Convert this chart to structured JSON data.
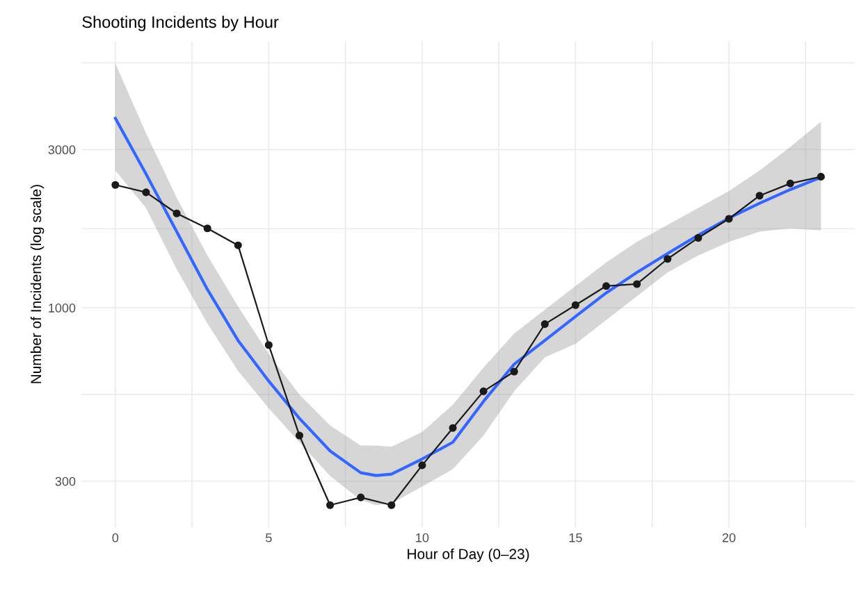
{
  "chart_data": {
    "type": "line",
    "title": "Shooting Incidents by Hour",
    "xlabel": "Hour of Day (0–23)",
    "ylabel": "Number of Incidents (log scale)",
    "log": "y",
    "grid": true,
    "legend": false,
    "xlim": [
      -1.1,
      24.1
    ],
    "xticks": [
      0,
      {
        "value": 2.5,
        "label": null
      },
      5,
      {
        "value": 7.5,
        "label": null
      },
      10,
      {
        "value": 12.5,
        "label": null
      },
      15,
      {
        "value": 17.5,
        "label": null
      },
      20,
      {
        "value": 22.5,
        "label": null
      }
    ],
    "ylim": [
      218,
      6365
    ],
    "yticks": [
      {
        "value": 300,
        "label": "300"
      },
      {
        "value": 548,
        "label": null
      },
      {
        "value": 1000,
        "label": "1000"
      },
      {
        "value": 1732,
        "label": null
      },
      {
        "value": 3000,
        "label": "3000"
      },
      {
        "value": 5477,
        "label": null
      }
    ],
    "series": [
      {
        "color": "#1a1a1a",
        "marker": "circle",
        "line_style": "solid",
        "x": [
          0,
          1,
          2,
          3,
          4,
          5,
          6,
          7,
          8,
          9,
          10,
          11,
          12,
          13,
          14,
          15,
          16,
          17,
          18,
          19,
          20,
          21,
          22,
          23
        ],
        "values": [
          2347,
          2229,
          1926,
          1736,
          1543,
          772,
          412,
          254,
          268,
          254,
          335,
          434,
          560,
          642,
          893,
          1019,
          1163,
          1179,
          1404,
          1625,
          1855,
          2178,
          2371,
          2485
        ]
      },
      {
        "color": "#3366ff",
        "marker": "none",
        "line_style": "solid",
        "x": [
          0,
          1,
          2,
          3,
          4,
          5,
          6,
          7,
          8,
          8.5,
          9,
          10,
          11,
          12,
          13,
          14,
          15,
          16,
          17,
          18,
          19,
          20,
          21,
          22,
          23
        ],
        "values": [
          3727,
          2531,
          1696,
          1136,
          797,
          601,
          464,
          370,
          318,
          312,
          315,
          350,
          393,
          522,
          676,
          797,
          941,
          1109,
          1278,
          1458,
          1656,
          1864,
          2067,
          2272,
          2473
        ],
        "lower": [
          2593,
          2000,
          1308,
          897,
          645,
          498,
          393,
          311,
          263,
          254,
          257,
          289,
          326,
          412,
          560,
          709,
          779,
          919,
          1083,
          1278,
          1438,
          1580,
          1696,
          1736,
          1712
        ],
        "upper": [
          5458,
          3359,
          2147,
          1438,
          1009,
          726,
          547,
          442,
          384,
          384,
          381,
          422,
          510,
          660,
          836,
          986,
          1163,
          1371,
          1580,
          1778,
          2000,
          2250,
          2593,
          3057,
          3640
        ]
      }
    ]
  }
}
